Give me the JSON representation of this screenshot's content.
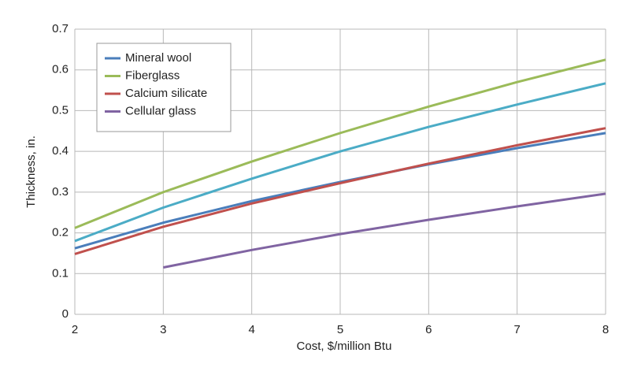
{
  "chart_data": {
    "type": "line",
    "x_label": "Cost, $/million Btu",
    "y_label": "Thickness, in.",
    "x": [
      2,
      3,
      4,
      5,
      6,
      7,
      8
    ],
    "series": [
      {
        "name": "Mineral wool",
        "color": "#4a7ebb",
        "values": [
          0.162,
          0.225,
          0.278,
          0.325,
          0.368,
          0.408,
          0.445
        ]
      },
      {
        "name": "Fiberglass",
        "color": "#9bbb59",
        "values": [
          0.212,
          0.3,
          0.375,
          0.445,
          0.51,
          0.57,
          0.625
        ]
      },
      {
        "name": "Calcium silicate",
        "color": "#c0504d",
        "values": [
          0.148,
          0.215,
          0.272,
          0.322,
          0.37,
          0.415,
          0.457
        ]
      },
      {
        "name": "Cellular glass",
        "color": "#8064a2",
        "values": [
          null,
          0.115,
          0.158,
          0.197,
          0.232,
          0.265,
          0.296
        ]
      },
      {
        "color": "#4bacc6",
        "values": [
          0.18,
          0.262,
          0.333,
          0.4,
          0.46,
          0.515,
          0.567
        ]
      }
    ],
    "xlim": [
      2,
      8
    ],
    "xticks": [
      2,
      3,
      4,
      5,
      6,
      7,
      8
    ],
    "ylim": [
      0,
      0.7
    ],
    "yticks": [
      0,
      0.1,
      0.2,
      0.3,
      0.4,
      0.5,
      0.6,
      0.7
    ],
    "grid": true,
    "legend": "top-left"
  }
}
